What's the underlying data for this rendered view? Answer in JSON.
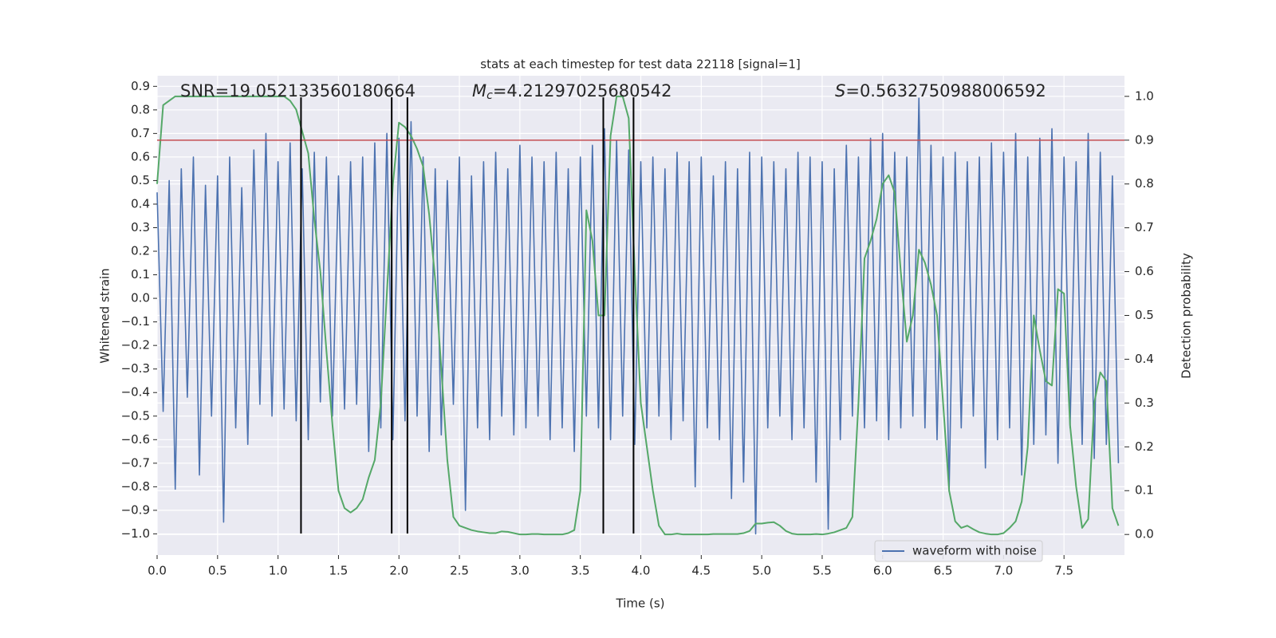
{
  "chart_data": {
    "type": "line",
    "title": "stats at each timestep for test data 22118 [signal=1]",
    "xlabel": "Time (s)",
    "ylabel": "Whitened strain",
    "y2label": "Detection probability",
    "annotations": [
      {
        "text": "SNR=19.052133560180664"
      },
      {
        "symbol": "M",
        "sub": "c",
        "text": "=4.21297025680542"
      },
      {
        "symbol": "S",
        "text": "=0.5632750988006592"
      }
    ],
    "xlim": [
      0,
      8.0
    ],
    "ylim": [
      -1.09,
      0.945
    ],
    "y2lim": [
      -0.047,
      1.047
    ],
    "xticks": [
      {
        "value": 0,
        "label": "0.0"
      },
      0.5,
      {
        "value": 1,
        "label": "1.0"
      },
      1.5,
      {
        "value": 2,
        "label": "2.0"
      },
      2.5,
      {
        "value": 3,
        "label": "3.0"
      },
      3.5,
      {
        "value": 4,
        "label": "4.0"
      },
      4.5,
      {
        "value": 5,
        "label": "5.0"
      },
      5.5,
      {
        "value": 6,
        "label": "6.0"
      },
      6.5,
      {
        "value": 7,
        "label": "7.0"
      },
      7.5
    ],
    "yticks": [
      {
        "value": -1,
        "label": "−1.0"
      },
      {
        "value": -0.9,
        "label": "−0.9"
      },
      {
        "value": -0.8,
        "label": "−0.8"
      },
      {
        "value": -0.7,
        "label": "−0.7"
      },
      {
        "value": -0.6,
        "label": "−0.6"
      },
      {
        "value": -0.5,
        "label": "−0.5"
      },
      {
        "value": -0.4,
        "label": "−0.4"
      },
      {
        "value": -0.3,
        "label": "−0.3"
      },
      {
        "value": -0.2,
        "label": "−0.2"
      },
      {
        "value": -0.1,
        "label": "−0.1"
      },
      {
        "value": 0,
        "label": "0.0"
      },
      0.1,
      0.2,
      0.3,
      0.4,
      0.5,
      0.6,
      0.7,
      0.8,
      0.9
    ],
    "y2ticks": [
      {
        "value": 0,
        "label": "0.0"
      },
      0.1,
      0.2,
      0.3,
      0.4,
      0.5,
      0.6,
      0.7,
      0.8,
      0.9,
      {
        "value": 1,
        "label": "1.0"
      }
    ],
    "grid": true,
    "legend": "lower right",
    "threshold": {
      "value": 0.9,
      "axis": "y2",
      "color": "#c44e52"
    },
    "vlines": {
      "x": [
        1.19,
        1.94,
        2.07,
        3.69,
        3.94
      ],
      "color": "#000000"
    },
    "x": [
      0,
      0.05,
      0.1,
      0.15,
      0.2,
      0.25,
      0.3,
      0.35,
      0.4,
      0.45,
      0.5,
      0.55,
      0.6,
      0.65,
      0.7,
      0.75,
      0.8,
      0.85,
      0.9,
      0.95,
      1,
      1.05,
      1.1,
      1.15,
      1.2,
      1.25,
      1.3,
      1.35,
      1.4,
      1.45,
      1.5,
      1.55,
      1.6,
      1.65,
      1.7,
      1.75,
      1.8,
      1.85,
      1.9,
      1.95,
      2,
      2.05,
      2.1,
      2.15,
      2.2,
      2.25,
      2.3,
      2.35,
      2.4,
      2.45,
      2.5,
      2.55,
      2.6,
      2.65,
      2.7,
      2.75,
      2.8,
      2.85,
      2.9,
      2.95,
      3,
      3.05,
      3.1,
      3.15,
      3.2,
      3.25,
      3.3,
      3.35,
      3.4,
      3.45,
      3.5,
      3.55,
      3.6,
      3.65,
      3.7,
      3.75,
      3.8,
      3.85,
      3.9,
      3.95,
      4,
      4.05,
      4.1,
      4.15,
      4.2,
      4.25,
      4.3,
      4.35,
      4.4,
      4.45,
      4.5,
      4.55,
      4.6,
      4.65,
      4.7,
      4.75,
      4.8,
      4.85,
      4.9,
      4.95,
      5,
      5.05,
      5.1,
      5.15,
      5.2,
      5.25,
      5.3,
      5.35,
      5.4,
      5.45,
      5.5,
      5.55,
      5.6,
      5.65,
      5.7,
      5.75,
      5.8,
      5.85,
      5.9,
      5.95,
      6,
      6.05,
      6.1,
      6.15,
      6.2,
      6.25,
      6.3,
      6.35,
      6.4,
      6.45,
      6.5,
      6.55,
      6.6,
      6.65,
      6.7,
      6.75,
      6.8,
      6.85,
      6.9,
      6.95,
      7,
      7.05,
      7.1,
      7.15,
      7.2,
      7.25,
      7.3,
      7.35,
      7.4,
      7.45,
      7.5,
      7.55,
      7.6,
      7.65,
      7.7,
      7.75,
      7.8,
      7.85,
      7.9,
      7.95
    ],
    "series": [
      {
        "name": "waveform with noise",
        "color": "#4c72b0",
        "values": [
          0.45,
          -0.48,
          0.5,
          -0.81,
          0.55,
          -0.42,
          0.6,
          -0.75,
          0.48,
          -0.5,
          0.52,
          -0.95,
          0.6,
          -0.55,
          0.47,
          -0.62,
          0.63,
          -0.45,
          0.7,
          -0.5,
          0.58,
          -0.47,
          0.66,
          -0.52,
          0.55,
          -0.6,
          0.62,
          -0.44,
          0.6,
          -0.5,
          0.52,
          -0.47,
          0.58,
          -0.45,
          0.6,
          -0.65,
          0.66,
          -0.55,
          0.7,
          -0.6,
          0.68,
          -0.52,
          0.75,
          -0.5,
          0.6,
          -0.65,
          0.55,
          -0.58,
          0.5,
          -0.45,
          0.6,
          -0.9,
          0.52,
          -0.55,
          0.58,
          -0.6,
          0.62,
          -0.5,
          0.55,
          -0.58,
          0.65,
          -0.55,
          0.6,
          -0.5,
          0.58,
          -0.6,
          0.62,
          -0.55,
          0.55,
          -0.65,
          0.6,
          -0.5,
          0.65,
          -0.55,
          0.72,
          -0.6,
          0.67,
          -0.5,
          0.63,
          -0.62,
          0.58,
          -0.55,
          0.6,
          -0.5,
          0.55,
          -0.6,
          0.62,
          -0.52,
          0.58,
          -0.8,
          0.6,
          -0.55,
          0.52,
          -0.6,
          0.58,
          -0.85,
          0.55,
          -0.78,
          0.62,
          -1.0,
          0.6,
          -0.55,
          0.58,
          -0.5,
          0.55,
          -0.6,
          0.62,
          -0.55,
          0.6,
          -0.78,
          0.58,
          -0.98,
          0.55,
          -0.6,
          0.65,
          -0.5,
          0.6,
          -0.55,
          0.68,
          -0.52,
          0.7,
          -0.6,
          0.62,
          -0.55,
          0.6,
          -0.5,
          0.85,
          -0.55,
          0.65,
          -0.6,
          0.6,
          -0.82,
          0.62,
          -0.55,
          0.58,
          -0.5,
          0.6,
          -0.72,
          0.66,
          -0.6,
          0.62,
          -0.55,
          0.7,
          -0.75,
          0.6,
          -0.62,
          0.68,
          -0.58,
          0.72,
          -0.7,
          0.6,
          -0.55,
          0.58,
          -0.62,
          0.7,
          -0.68,
          0.62,
          -0.62,
          0.52,
          -0.7
        ]
      },
      {
        "color": "#55a868",
        "axis": "y2",
        "values": [
          0.8,
          0.98,
          0.99,
          1,
          1,
          1,
          1,
          1,
          1,
          1,
          1,
          1,
          1,
          1,
          1,
          1,
          1,
          1,
          1,
          1,
          1,
          1,
          0.99,
          0.97,
          0.92,
          0.87,
          0.72,
          0.6,
          0.42,
          0.25,
          0.1,
          0.06,
          0.05,
          0.06,
          0.08,
          0.13,
          0.17,
          0.3,
          0.55,
          0.8,
          0.94,
          0.93,
          0.91,
          0.88,
          0.84,
          0.73,
          0.58,
          0.38,
          0.17,
          0.04,
          0.02,
          0.015,
          0.01,
          0.007,
          0.005,
          0.003,
          0.003,
          0.007,
          0.006,
          0.003,
          0,
          0,
          0.001,
          0.001,
          0,
          0,
          0,
          0,
          0.003,
          0.01,
          0.1,
          0.74,
          0.67,
          0.5,
          0.5,
          0.91,
          1,
          1,
          0.95,
          0.6,
          0.3,
          0.2,
          0.1,
          0.02,
          0,
          0,
          0.002,
          0,
          0,
          0,
          0,
          0,
          0.001,
          0.001,
          0.001,
          0.001,
          0.001,
          0.003,
          0.008,
          0.025,
          0.025,
          0.027,
          0.028,
          0.02,
          0.008,
          0.002,
          0,
          0,
          0,
          0.001,
          0,
          0.002,
          0.005,
          0.01,
          0.015,
          0.04,
          0.3,
          0.63,
          0.67,
          0.72,
          0.8,
          0.82,
          0.78,
          0.6,
          0.44,
          0.5,
          0.65,
          0.62,
          0.57,
          0.5,
          0.3,
          0.1,
          0.03,
          0.015,
          0.02,
          0.012,
          0.005,
          0.002,
          0,
          0,
          0.003,
          0.015,
          0.03,
          0.075,
          0.2,
          0.5,
          0.42,
          0.35,
          0.34,
          0.56,
          0.55,
          0.25,
          0.11,
          0.015,
          0.035,
          0.3,
          0.37,
          0.35,
          0.06,
          0.02
        ]
      }
    ]
  }
}
